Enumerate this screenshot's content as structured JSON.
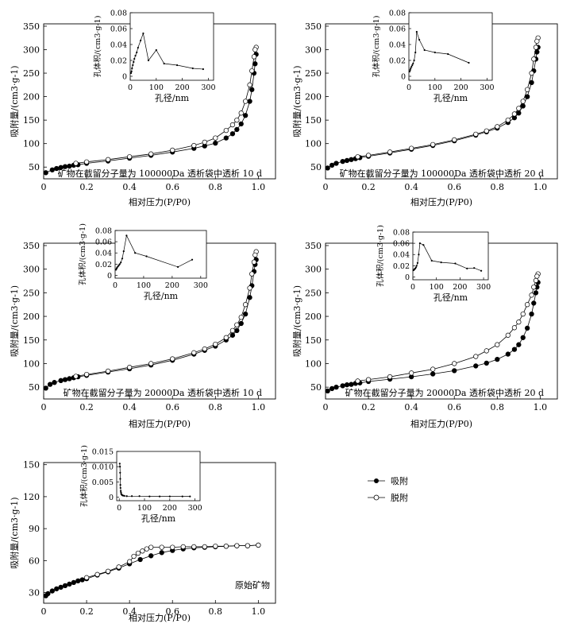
{
  "legend": {
    "adsorption": "吸附",
    "desorption": "脱附"
  },
  "chart_data": [
    {
      "type": "line",
      "caption": "矿物在截留分子量为 100000Da 透析袋中透析 10 d",
      "xlabel": "相对压力(P/P0)",
      "ylabel": "吸附量/(cm3·g-1)",
      "xlim": [
        0,
        1.08
      ],
      "ylim": [
        25,
        355
      ],
      "xticks": [
        "0",
        "0.2",
        "0.4",
        "0.6",
        "0.8",
        "1.0"
      ],
      "yticks": [
        "50",
        "100",
        "150",
        "200",
        "250",
        "300",
        "350"
      ],
      "series": [
        {
          "name": "吸附",
          "x": [
            0.01,
            0.04,
            0.06,
            0.08,
            0.1,
            0.12,
            0.14,
            0.16,
            0.2,
            0.3,
            0.4,
            0.5,
            0.6,
            0.7,
            0.75,
            0.8,
            0.85,
            0.88,
            0.9,
            0.92,
            0.94,
            0.96,
            0.97,
            0.98,
            0.985,
            0.99
          ],
          "y": [
            38,
            44,
            47,
            49,
            51,
            52,
            54,
            55,
            58,
            63,
            69,
            75,
            82,
            90,
            95,
            101,
            112,
            121,
            130,
            142,
            160,
            190,
            215,
            250,
            270,
            290
          ]
        },
        {
          "name": "脱附",
          "x": [
            0.99,
            0.985,
            0.98,
            0.97,
            0.96,
            0.94,
            0.92,
            0.9,
            0.88,
            0.85,
            0.8,
            0.75,
            0.7,
            0.6,
            0.5,
            0.4,
            0.3,
            0.2,
            0.15
          ],
          "y": [
            305,
            300,
            285,
            255,
            225,
            190,
            165,
            150,
            140,
            128,
            112,
            103,
            96,
            86,
            78,
            72,
            66,
            61,
            58
          ]
        }
      ],
      "inset": {
        "xlabel": "孔径/nm",
        "ylabel": "孔体积/(cm3·g-1)",
        "xlim": [
          0,
          320
        ],
        "ylim": [
          -0.005,
          0.08
        ],
        "xticks": [
          "0",
          "100",
          "200",
          "300"
        ],
        "yticks": [
          "0",
          "0.02",
          "0.04",
          "0.06",
          "0.08"
        ],
        "x": [
          3,
          5,
          7,
          10,
          13,
          16,
          20,
          25,
          30,
          40,
          50,
          70,
          100,
          130,
          180,
          240,
          280
        ],
        "y": [
          0.004,
          0.006,
          0.01,
          0.014,
          0.018,
          0.022,
          0.026,
          0.03,
          0.036,
          0.045,
          0.054,
          0.02,
          0.033,
          0.016,
          0.014,
          0.01,
          0.009
        ]
      }
    },
    {
      "type": "line",
      "caption": "矿物在截留分子量为 100000Da 透析袋中透析 20 d",
      "xlabel": "相对压力(P/P0)",
      "ylabel": "吸附量/(cm3·g-1)",
      "xlim": [
        0,
        1.08
      ],
      "ylim": [
        25,
        355
      ],
      "xticks": [
        "0",
        "0.2",
        "0.4",
        "0.6",
        "0.8",
        "1.0"
      ],
      "yticks": [
        "50",
        "100",
        "150",
        "200",
        "250",
        "300",
        "350"
      ],
      "series": [
        {
          "name": "吸附",
          "x": [
            0.01,
            0.03,
            0.05,
            0.08,
            0.1,
            0.12,
            0.14,
            0.16,
            0.2,
            0.3,
            0.4,
            0.5,
            0.6,
            0.7,
            0.75,
            0.8,
            0.85,
            0.88,
            0.9,
            0.92,
            0.94,
            0.96,
            0.97,
            0.98,
            0.985,
            0.99
          ],
          "y": [
            48,
            54,
            58,
            62,
            64,
            66,
            68,
            70,
            73,
            80,
            88,
            96,
            106,
            118,
            125,
            133,
            145,
            155,
            165,
            180,
            200,
            230,
            255,
            280,
            295,
            305
          ]
        },
        {
          "name": "脱附",
          "x": [
            0.99,
            0.985,
            0.98,
            0.97,
            0.96,
            0.94,
            0.92,
            0.9,
            0.88,
            0.85,
            0.8,
            0.75,
            0.7,
            0.6,
            0.5,
            0.4,
            0.3,
            0.2,
            0.15
          ],
          "y": [
            325,
            318,
            305,
            280,
            250,
            215,
            190,
            175,
            163,
            150,
            136,
            127,
            120,
            108,
            98,
            90,
            82,
            75,
            72
          ]
        }
      ],
      "inset": {
        "xlabel": "孔径/nm",
        "ylabel": "孔体积/(cm3·g-1)",
        "xlim": [
          0,
          320
        ],
        "ylim": [
          -0.005,
          0.08
        ],
        "xticks": [
          "0",
          "100",
          "200",
          "300"
        ],
        "yticks": [
          "0",
          "0.02",
          "0.04",
          "0.06",
          "0.08"
        ],
        "x": [
          3,
          5,
          7,
          10,
          13,
          16,
          20,
          25,
          30,
          40,
          60,
          100,
          150,
          230
        ],
        "y": [
          0.006,
          0.008,
          0.01,
          0.012,
          0.014,
          0.016,
          0.02,
          0.03,
          0.056,
          0.046,
          0.033,
          0.03,
          0.028,
          0.017
        ]
      }
    },
    {
      "type": "line",
      "caption": "矿物在截留分子量为 20000Da 透析袋中透析 10 d",
      "xlabel": "相对压力(P/P0)",
      "ylabel": "吸附量/(cm3·g-1)",
      "xlim": [
        0,
        1.08
      ],
      "ylim": [
        25,
        355
      ],
      "xticks": [
        "0",
        "0.2",
        "0.4",
        "0.6",
        "0.8",
        "1.0"
      ],
      "yticks": [
        "50",
        "100",
        "150",
        "200",
        "250",
        "300",
        "350"
      ],
      "series": [
        {
          "name": "吸附",
          "x": [
            0.01,
            0.03,
            0.05,
            0.08,
            0.1,
            0.12,
            0.14,
            0.16,
            0.2,
            0.3,
            0.4,
            0.5,
            0.6,
            0.7,
            0.75,
            0.8,
            0.85,
            0.88,
            0.9,
            0.92,
            0.94,
            0.96,
            0.97,
            0.98,
            0.985,
            0.99
          ],
          "y": [
            48,
            56,
            60,
            64,
            66,
            68,
            70,
            72,
            75,
            82,
            89,
            97,
            107,
            120,
            128,
            137,
            150,
            160,
            170,
            185,
            205,
            240,
            265,
            295,
            310,
            320
          ]
        },
        {
          "name": "脱附",
          "x": [
            0.99,
            0.985,
            0.98,
            0.97,
            0.96,
            0.94,
            0.92,
            0.9,
            0.88,
            0.85,
            0.8,
            0.75,
            0.7,
            0.6,
            0.5,
            0.4,
            0.3,
            0.2,
            0.15
          ],
          "y": [
            337,
            330,
            315,
            290,
            260,
            225,
            198,
            182,
            170,
            155,
            141,
            131,
            123,
            110,
            100,
            92,
            84,
            77,
            73
          ]
        }
      ],
      "inset": {
        "xlabel": "孔径/nm",
        "ylabel": "孔体积/(cm3·g-1)",
        "xlim": [
          0,
          320
        ],
        "ylim": [
          -0.005,
          0.08
        ],
        "xticks": [
          "0",
          "100",
          "200",
          "300"
        ],
        "yticks": [
          "0",
          "0.02",
          "0.04",
          "0.06",
          "0.08"
        ],
        "x": [
          3,
          5,
          7,
          10,
          13,
          16,
          20,
          25,
          30,
          40,
          70,
          110,
          220,
          270
        ],
        "y": [
          0.01,
          0.012,
          0.014,
          0.016,
          0.018,
          0.02,
          0.023,
          0.03,
          0.043,
          0.071,
          0.04,
          0.034,
          0.015,
          0.028
        ]
      }
    },
    {
      "type": "line",
      "caption": "矿物在截留分子量为 20000Da 透析袋中透析 20 d",
      "xlabel": "相对压力(P/P0)",
      "ylabel": "吸附量/(cm3·g-1)",
      "xlim": [
        0,
        1.08
      ],
      "ylim": [
        25,
        355
      ],
      "xticks": [
        "0",
        "0.2",
        "0.4",
        "0.6",
        "0.8",
        "1.0"
      ],
      "yticks": [
        "50",
        "100",
        "150",
        "200",
        "250",
        "300",
        "350"
      ],
      "series": [
        {
          "name": "吸附",
          "x": [
            0.01,
            0.03,
            0.05,
            0.08,
            0.1,
            0.12,
            0.14,
            0.16,
            0.2,
            0.3,
            0.4,
            0.5,
            0.6,
            0.7,
            0.75,
            0.8,
            0.85,
            0.88,
            0.9,
            0.92,
            0.94,
            0.96,
            0.97,
            0.98,
            0.985,
            0.99
          ],
          "y": [
            42,
            47,
            50,
            53,
            55,
            56,
            58,
            59,
            62,
            67,
            72,
            78,
            85,
            95,
            101,
            109,
            120,
            130,
            140,
            155,
            175,
            205,
            228,
            250,
            262,
            272
          ]
        },
        {
          "name": "脱附",
          "x": [
            0.99,
            0.985,
            0.98,
            0.97,
            0.96,
            0.94,
            0.92,
            0.9,
            0.88,
            0.85,
            0.8,
            0.75,
            0.7,
            0.6,
            0.5,
            0.4,
            0.3,
            0.2,
            0.15
          ],
          "y": [
            290,
            285,
            276,
            262,
            245,
            225,
            205,
            188,
            176,
            160,
            140,
            127,
            115,
            100,
            88,
            80,
            72,
            66,
            63
          ]
        }
      ],
      "inset": {
        "xlabel": "孔径/nm",
        "ylabel": "孔体积/(cm3·g-1)",
        "xlim": [
          0,
          320
        ],
        "ylim": [
          -0.005,
          0.08
        ],
        "xticks": [
          "0",
          "100",
          "200",
          "300"
        ],
        "yticks": [
          "0",
          "0.02",
          "0.04",
          "0.06",
          "0.08"
        ],
        "x": [
          3,
          5,
          7,
          10,
          13,
          16,
          20,
          25,
          30,
          45,
          80,
          120,
          180,
          230,
          260,
          290
        ],
        "y": [
          0.012,
          0.013,
          0.014,
          0.015,
          0.017,
          0.02,
          0.025,
          0.04,
          0.06,
          0.057,
          0.029,
          0.026,
          0.024,
          0.015,
          0.016,
          0.011
        ]
      }
    },
    {
      "type": "line",
      "caption": "原始矿物",
      "xlabel": "相对压力(P/P0)",
      "ylabel": "吸附量/(cm3·g-1)",
      "xlim": [
        0,
        1.08
      ],
      "ylim": [
        20,
        152
      ],
      "xticks": [
        "0",
        "0.2",
        "0.4",
        "0.6",
        "0.8",
        "1.0"
      ],
      "yticks": [
        "30",
        "60",
        "90",
        "120",
        "150"
      ],
      "series": [
        {
          "name": "吸附",
          "x": [
            0.01,
            0.02,
            0.04,
            0.06,
            0.08,
            0.1,
            0.12,
            0.14,
            0.16,
            0.18,
            0.2,
            0.25,
            0.3,
            0.35,
            0.4,
            0.45,
            0.5,
            0.55,
            0.6,
            0.65,
            0.7,
            0.75,
            0.8,
            0.85,
            0.9,
            0.95,
            1.0
          ],
          "y": [
            27,
            29,
            31.5,
            33.5,
            35,
            36.5,
            38,
            39.5,
            41,
            42,
            43,
            46.5,
            49.5,
            53,
            57,
            61,
            64.5,
            67.5,
            69.5,
            71,
            72,
            72.5,
            73,
            73.5,
            74,
            74,
            74.5
          ]
        },
        {
          "name": "脱附",
          "x": [
            1.0,
            0.95,
            0.9,
            0.85,
            0.8,
            0.75,
            0.7,
            0.65,
            0.6,
            0.55,
            0.5,
            0.48,
            0.46,
            0.44,
            0.42,
            0.4,
            0.35,
            0.3,
            0.25,
            0.2
          ],
          "y": [
            74.5,
            74,
            74,
            73.5,
            73.5,
            73,
            73,
            73,
            72.5,
            72.5,
            72.5,
            71,
            69,
            67,
            64,
            59,
            54,
            50,
            47,
            44
          ]
        }
      ],
      "inset": {
        "xlabel": "孔径/nm",
        "ylabel": "孔体积/(cm3·g-1)",
        "xlim": [
          -10,
          320
        ],
        "ylim": [
          -0.0012,
          0.015
        ],
        "xticks": [
          "0",
          "100",
          "200",
          "300"
        ],
        "yticks": [
          "0",
          "0.005",
          "0.010",
          "0.015"
        ],
        "x": [
          2,
          3,
          3.5,
          4,
          4.5,
          5,
          6,
          7,
          8,
          10,
          12,
          15,
          20,
          30,
          50,
          80,
          120,
          160,
          200,
          250,
          280
        ],
        "y": [
          0.011,
          0.01,
          0.008,
          0.006,
          0.004,
          0.003,
          0.002,
          0.0015,
          0.001,
          0.0008,
          0.0006,
          0.0005,
          0.0004,
          0.0003,
          0.0003,
          0.0003,
          0.0002,
          0.0002,
          0.0002,
          0.0002,
          0.0002
        ]
      }
    }
  ]
}
